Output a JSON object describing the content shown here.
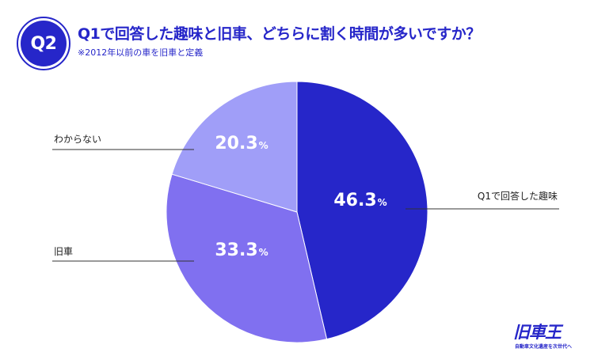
{
  "header": {
    "badge": "Q2",
    "title": "Q1で回答した趣味と旧車、どちらに割く時間が多いですか？",
    "subtitle": "※2012年以前の車を旧車と定義"
  },
  "chart_data": {
    "type": "pie",
    "unit": "%",
    "slices": [
      {
        "label": "Q1で回答した趣味",
        "value": 46.3,
        "display": "46.3",
        "color": "#2626c9"
      },
      {
        "label": "旧車",
        "value": 33.3,
        "display": "33.3",
        "color": "#8070f0"
      },
      {
        "label": "わからない",
        "value": 20.3,
        "display": "20.3",
        "color": "#a09ef8"
      }
    ]
  },
  "logo": {
    "main": "旧車王",
    "sub": "自動車文化遺産を次世代へ"
  }
}
